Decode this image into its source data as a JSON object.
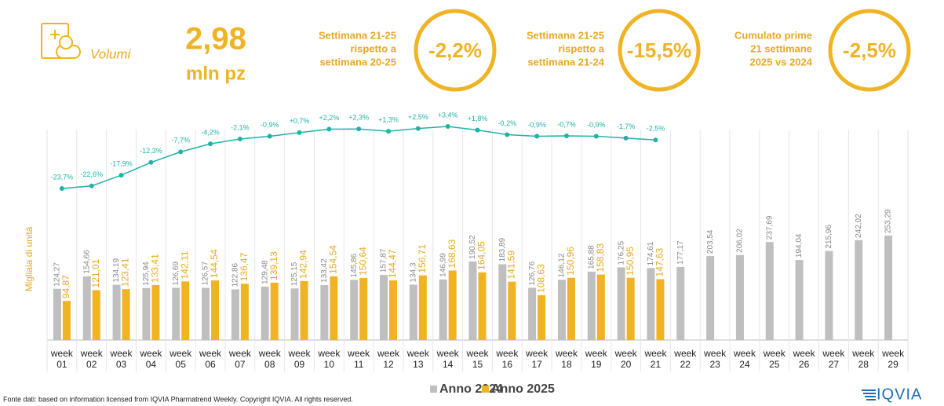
{
  "header": {
    "label": "Volumi",
    "value": "2,98",
    "unit": "mln pz",
    "kpis": [
      {
        "text": [
          "Settimana 21-25",
          "rispetto a",
          "settimana 20-25"
        ],
        "value": "-2,2%"
      },
      {
        "text": [
          "Settimana 21-25",
          "rispetto a",
          "settimana 21-24"
        ],
        "value": "-15,5%"
      },
      {
        "text": [
          "Cumulato prime",
          "21 settimane",
          "2025 vs 2024"
        ],
        "value": "-2,5%"
      }
    ]
  },
  "chart_data": {
    "type": "bar",
    "y_label": "Migliaia di unità",
    "categories": [
      "week 01",
      "week 02",
      "week 03",
      "week 04",
      "week 05",
      "week 06",
      "week 07",
      "week 08",
      "week 09",
      "week 10",
      "week 11",
      "week 12",
      "week 13",
      "week 14",
      "week 15",
      "week 16",
      "week 17",
      "week 18",
      "week 19",
      "week 20",
      "week 21",
      "week 22",
      "week 23",
      "week 24",
      "week 25",
      "week 26",
      "week 27",
      "week 28",
      "week 29"
    ],
    "series": [
      {
        "name": "Anno 2024",
        "color": "#bfbfbf",
        "values": [
          124.27,
          154.66,
          134.19,
          125.94,
          126.69,
          126.57,
          122.86,
          129.48,
          125.15,
          133.42,
          145.86,
          157.87,
          134.3,
          146.99,
          190.52,
          183.89,
          126.76,
          146.12,
          165.88,
          176.25,
          174.61,
          177.17,
          203.54,
          206.02,
          237.69,
          194.04,
          215.96,
          242.02,
          253.29
        ],
        "value_labels": [
          "124,27",
          "154,66",
          "134,19",
          "125,94",
          "126,69",
          "126,57",
          "122,86",
          "129,48",
          "125,15",
          "133,42",
          "145,86",
          "157,87",
          "134,3",
          "146,99",
          "190,52",
          "183,89",
          "126,76",
          "146,12",
          "165,88",
          "176,25",
          "174,61",
          "177,17",
          "203,54",
          "206,02",
          "237,69",
          "194,04",
          "215,96",
          "242,02",
          "253,29"
        ]
      },
      {
        "name": "Anno 2025",
        "color": "#f0b323",
        "values": [
          94.87,
          121.01,
          123.41,
          133.41,
          142.11,
          144.54,
          136.47,
          139.13,
          142.94,
          154.54,
          150.64,
          144.47,
          156.71,
          168.63,
          164.05,
          141.59,
          108.63,
          150.96,
          158.83,
          150.95,
          147.63,
          null,
          null,
          null,
          null,
          null,
          null,
          null,
          null
        ],
        "value_labels": [
          "94,87",
          "121,01",
          "123,41",
          "133,41",
          "142,11",
          "144,54",
          "136,47",
          "139,13",
          "142,94",
          "154,54",
          "150,64",
          "144,47",
          "156,71",
          "168,63",
          "164,05",
          "141,59",
          "108,63",
          "150,96",
          "158,83",
          "150,95",
          "147,63",
          null,
          null,
          null,
          null,
          null,
          null,
          null,
          null
        ]
      },
      {
        "type": "line",
        "color": "#1fb3a6",
        "values": [
          -23.7,
          -22.6,
          -17.9,
          -12.3,
          -7.7,
          -4.2,
          -2.1,
          -0.9,
          0.7,
          2.2,
          2.3,
          1.3,
          2.5,
          3.4,
          1.8,
          -0.2,
          -0.9,
          -0.7,
          -0.9,
          -1.7,
          -2.5,
          null,
          null,
          null,
          null,
          null,
          null,
          null,
          null
        ],
        "value_labels": [
          "-23,7%",
          "-22,6%",
          "-17,9%",
          "-12,3%",
          "-7,7%",
          "-4,2%",
          "-2,1%",
          "-0,9%",
          "+0,7%",
          "+2,2%",
          "+2,3%",
          "+1,3%",
          "+2,5%",
          "+3,4%",
          "+1,8%",
          "-0,2%",
          "-0,9%",
          "-0,7%",
          "-0,9%",
          "-1,7%",
          "-2,5%",
          null,
          null,
          null,
          null,
          null,
          null,
          null,
          null
        ]
      }
    ]
  },
  "footer": {
    "source": "Fonte dati: based on information licensed from IQVIA Pharmatrend Weekly. Copyright IQVIA. All rights reserved.",
    "logo": "IQVIA"
  }
}
